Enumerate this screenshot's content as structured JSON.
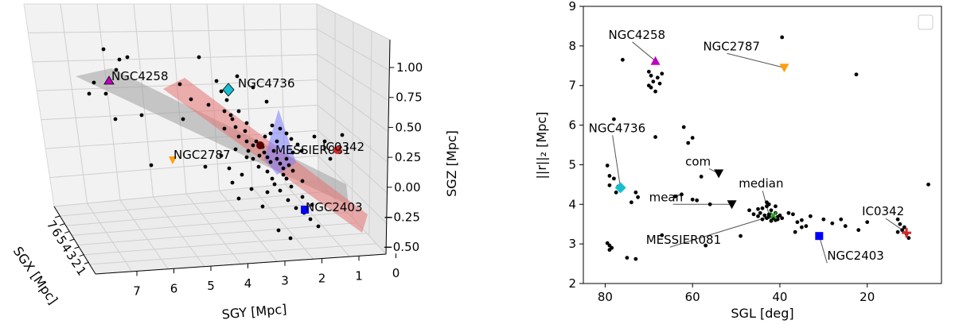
{
  "chart_data": [
    {
      "type": "scatter3d",
      "xlabel": "SGX [Mpc]",
      "ylabel": "SGY [Mpc]",
      "zlabel": "SGZ [Mpc]",
      "yticks": [
        "7",
        "6",
        "5",
        "4",
        "3",
        "2",
        "1",
        "0"
      ],
      "xticks": [
        "7",
        "6",
        "5",
        "4",
        "3",
        "2",
        "1"
      ],
      "zticks": [
        "1.00",
        "0.75",
        "0.50",
        "0.25",
        "0.00",
        "−0.25",
        "−0.50"
      ],
      "labeled_points": [
        {
          "name": "NGC4258",
          "color": "#bf00bf",
          "marker": "triangle-up"
        },
        {
          "name": "NGC4736",
          "color": "#17becf",
          "marker": "diamond"
        },
        {
          "name": "NGC2787",
          "color": "#ff9f0e",
          "marker": "triangle-down"
        },
        {
          "name": "MESSIER081",
          "color": "#5a0000",
          "marker": "circle"
        },
        {
          "name": "IC0342",
          "color": "#d62728",
          "marker": "circle"
        },
        {
          "name": "NGC2403",
          "color": "#0000ff",
          "marker": "square"
        }
      ],
      "planes": [
        {
          "color": "#a0a0a0"
        },
        {
          "color": "#e57373"
        },
        {
          "color": "#7b7bff"
        }
      ]
    },
    {
      "type": "scatter",
      "xlabel": "SGL [deg]",
      "ylabel": "||r||₂ [Mpc]",
      "xlim": [
        85,
        3
      ],
      "ylim": [
        2,
        9
      ],
      "xticks": [
        80,
        60,
        40,
        20
      ],
      "yticks": [
        2,
        3,
        4,
        5,
        6,
        7,
        8,
        9
      ],
      "labeled_points": [
        {
          "name": "NGC4258",
          "x": 68.5,
          "y": 7.62,
          "color": "#bf00bf",
          "marker": "triangle-up"
        },
        {
          "name": "NGC2787",
          "x": 39,
          "y": 7.45,
          "color": "#ff9f0e",
          "marker": "triangle-down"
        },
        {
          "name": "NGC4736",
          "x": 76.5,
          "y": 4.42,
          "color": "#17becf",
          "marker": "diamond"
        },
        {
          "name": "NGC2403",
          "x": 31,
          "y": 3.2,
          "color": "#0000ff",
          "marker": "square"
        },
        {
          "name": "IC0342",
          "x": 11,
          "y": 3.28,
          "color": "#d62728",
          "marker": "plus"
        },
        {
          "name": "MESSIER081",
          "x": 41.5,
          "y": 3.72,
          "color": "#2ca02c",
          "marker": "x"
        },
        {
          "name": "com",
          "x": 54,
          "y": 4.78,
          "color": "#000000",
          "marker": "triangle-down"
        },
        {
          "name": "mean",
          "x": 51,
          "y": 4.0,
          "color": "#000000",
          "marker": "triangle-down"
        },
        {
          "name": "median",
          "x": 42.5,
          "y": 3.74,
          "color": "#000000",
          "marker": "dot"
        }
      ],
      "points": [
        [
          76,
          7.65
        ],
        [
          70,
          7.35
        ],
        [
          69.5,
          7.25
        ],
        [
          68,
          7.2
        ],
        [
          69,
          7.1
        ],
        [
          69.5,
          6.95
        ],
        [
          68.5,
          6.85
        ],
        [
          67,
          7.3
        ],
        [
          67.5,
          7.05
        ],
        [
          70,
          7.0
        ],
        [
          39.5,
          8.22
        ],
        [
          22.5,
          7.28
        ],
        [
          78,
          6.15
        ],
        [
          62,
          5.95
        ],
        [
          60,
          5.68
        ],
        [
          61,
          5.55
        ],
        [
          68.5,
          5.7
        ],
        [
          79.5,
          4.98
        ],
        [
          79,
          4.72
        ],
        [
          78,
          4.65
        ],
        [
          79,
          4.48
        ],
        [
          77,
          4.45
        ],
        [
          77.5,
          4.3
        ],
        [
          73,
          4.3
        ],
        [
          72.5,
          4.18
        ],
        [
          74,
          4.05
        ],
        [
          58,
          4.7
        ],
        [
          64,
          4.2
        ],
        [
          62.5,
          4.25
        ],
        [
          60,
          4.12
        ],
        [
          59,
          4.1
        ],
        [
          56,
          4.0
        ],
        [
          47,
          3.85
        ],
        [
          45,
          3.88
        ],
        [
          44,
          3.9
        ],
        [
          43,
          3.95
        ],
        [
          42,
          3.85
        ],
        [
          41,
          3.78
        ],
        [
          44.5,
          3.78
        ],
        [
          43.5,
          3.72
        ],
        [
          42.5,
          3.68
        ],
        [
          41.5,
          3.65
        ],
        [
          40.5,
          3.68
        ],
        [
          40,
          3.72
        ],
        [
          43,
          3.65
        ],
        [
          44,
          3.62
        ],
        [
          42,
          3.58
        ],
        [
          41,
          3.6
        ],
        [
          40.5,
          3.62
        ],
        [
          39.5,
          3.65
        ],
        [
          45,
          3.7
        ],
        [
          46,
          3.75
        ],
        [
          43,
          4.05
        ],
        [
          42.5,
          4.0
        ],
        [
          41,
          3.95
        ],
        [
          38,
          3.78
        ],
        [
          36,
          3.55
        ],
        [
          35,
          3.6
        ],
        [
          33,
          3.7
        ],
        [
          30,
          3.62
        ],
        [
          28,
          3.52
        ],
        [
          26,
          3.62
        ],
        [
          25,
          3.45
        ],
        [
          22,
          3.35
        ],
        [
          20,
          3.55
        ],
        [
          35,
          3.42
        ],
        [
          34,
          3.45
        ],
        [
          13,
          3.62
        ],
        [
          12.5,
          3.5
        ],
        [
          11.5,
          3.42
        ],
        [
          12,
          3.35
        ],
        [
          13,
          3.3
        ],
        [
          11,
          3.25
        ],
        [
          10.5,
          3.15
        ],
        [
          6,
          4.5
        ],
        [
          36.5,
          3.3
        ],
        [
          37,
          3.75
        ],
        [
          79.5,
          3.02
        ],
        [
          79,
          2.96
        ],
        [
          78.5,
          2.9
        ],
        [
          79,
          2.85
        ],
        [
          75,
          2.65
        ],
        [
          73,
          2.62
        ],
        [
          67,
          3.22
        ],
        [
          57,
          2.96
        ],
        [
          49,
          3.2
        ]
      ]
    }
  ]
}
